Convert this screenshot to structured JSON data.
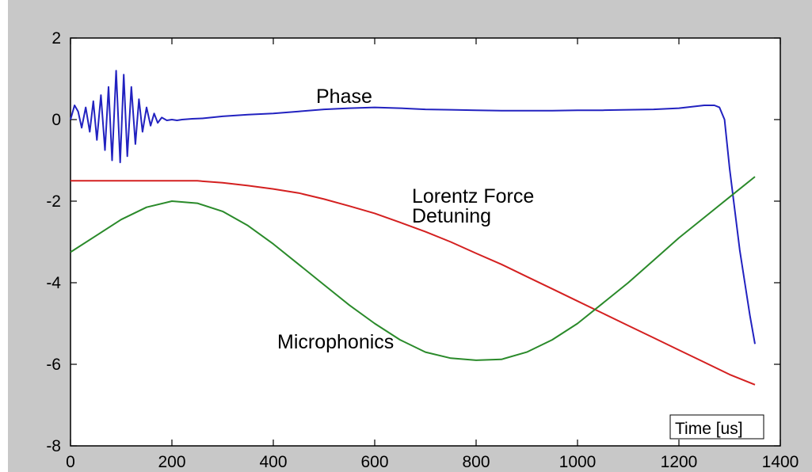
{
  "chart_data": {
    "type": "line",
    "xlabel": "Time [us]",
    "ylabel": "",
    "xlim": [
      0,
      1400
    ],
    "ylim": [
      -8,
      2
    ],
    "xticks": [
      0,
      200,
      400,
      600,
      800,
      1000,
      1200,
      1400
    ],
    "yticks": [
      2,
      0,
      -2,
      -4,
      -6,
      -8
    ],
    "grid": false,
    "series": [
      {
        "color": "#2222c0",
        "x": [
          0,
          8,
          15,
          22,
          30,
          38,
          45,
          52,
          60,
          68,
          75,
          82,
          90,
          98,
          105,
          112,
          120,
          128,
          135,
          142,
          150,
          158,
          165,
          172,
          180,
          190,
          200,
          210,
          220,
          240,
          260,
          300,
          350,
          400,
          450,
          500,
          550,
          600,
          650,
          700,
          750,
          800,
          850,
          900,
          950,
          1000,
          1050,
          1100,
          1150,
          1200,
          1250,
          1270,
          1280,
          1290,
          1300,
          1310,
          1320,
          1330,
          1340,
          1350
        ],
        "y": [
          0.0,
          0.35,
          0.2,
          -0.2,
          0.3,
          -0.3,
          0.45,
          -0.5,
          0.6,
          -0.75,
          0.8,
          -1.0,
          1.2,
          -1.05,
          1.1,
          -0.9,
          0.8,
          -0.6,
          0.5,
          -0.3,
          0.3,
          -0.15,
          0.15,
          -0.08,
          0.05,
          -0.02,
          0.0,
          -0.02,
          0.0,
          0.02,
          0.03,
          0.08,
          0.12,
          0.15,
          0.2,
          0.25,
          0.28,
          0.3,
          0.28,
          0.25,
          0.24,
          0.23,
          0.22,
          0.22,
          0.22,
          0.23,
          0.23,
          0.24,
          0.25,
          0.28,
          0.35,
          0.35,
          0.3,
          0.0,
          -1.2,
          -2.2,
          -3.2,
          -4.0,
          -4.8,
          -5.5
        ]
      },
      {
        "color": "#d42020",
        "x": [
          0,
          100,
          200,
          250,
          300,
          350,
          400,
          450,
          500,
          550,
          600,
          650,
          700,
          750,
          800,
          850,
          900,
          950,
          1000,
          1050,
          1100,
          1150,
          1200,
          1250,
          1300,
          1350
        ],
        "y": [
          -1.5,
          -1.5,
          -1.5,
          -1.5,
          -1.55,
          -1.62,
          -1.7,
          -1.8,
          -1.95,
          -2.12,
          -2.3,
          -2.52,
          -2.75,
          -3.0,
          -3.28,
          -3.55,
          -3.85,
          -4.15,
          -4.45,
          -4.75,
          -5.05,
          -5.35,
          -5.65,
          -5.95,
          -6.25,
          -6.5
        ]
      },
      {
        "color": "#2a8a2a",
        "x": [
          0,
          50,
          100,
          150,
          200,
          250,
          300,
          350,
          400,
          450,
          500,
          550,
          600,
          650,
          700,
          750,
          800,
          850,
          900,
          950,
          1000,
          1050,
          1100,
          1150,
          1200,
          1250,
          1300,
          1350
        ],
        "y": [
          -3.25,
          -2.85,
          -2.45,
          -2.15,
          -2.0,
          -2.05,
          -2.25,
          -2.6,
          -3.05,
          -3.55,
          -4.05,
          -4.55,
          -5.0,
          -5.4,
          -5.7,
          -5.85,
          -5.9,
          -5.88,
          -5.7,
          -5.4,
          -5.0,
          -4.5,
          -4.0,
          -3.45,
          -2.9,
          -2.4,
          -1.9,
          -1.4
        ]
      }
    ],
    "annotations": {
      "phase": "Phase",
      "lorentz_line1": "Lorentz Force",
      "lorentz_line2": "Detuning",
      "microphonics": "Microphonics"
    }
  }
}
